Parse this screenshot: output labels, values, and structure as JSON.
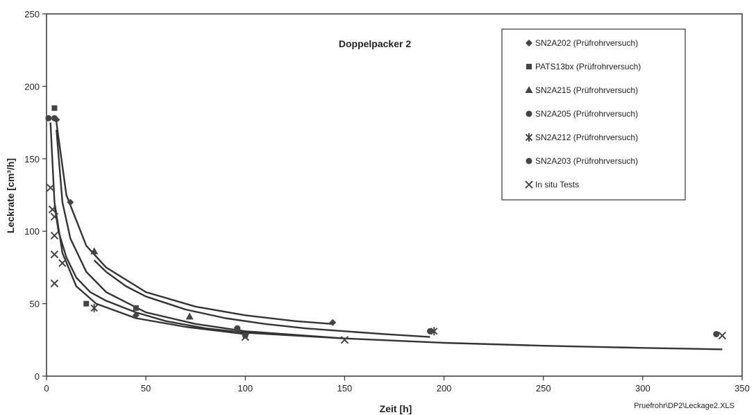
{
  "chart_data": {
    "type": "scatter",
    "title": "Doppelpacker 2",
    "xlabel": "Zeit [h]",
    "ylabel": "Leckrate [cm³/h]",
    "xlim": [
      0,
      350
    ],
    "ylim": [
      0,
      250
    ],
    "xticks": [
      "0",
      "50",
      "100",
      "150",
      "200",
      "250",
      "300",
      "350"
    ],
    "yticks": [
      "0",
      "50",
      "100",
      "150",
      "200",
      "250"
    ],
    "grid": false,
    "legend_position": "top-right",
    "footnote": "Pruefrohr\\DP2\\Leckage2.XLS",
    "series": [
      {
        "name": "SN2A202 (Prüfrohrversuch)",
        "marker": "diamond",
        "points": [
          [
            5,
            177
          ],
          [
            12,
            120
          ],
          [
            45,
            42
          ],
          [
            144,
            37
          ]
        ],
        "trend": [
          [
            5,
            175
          ],
          [
            10,
            125
          ],
          [
            20,
            90
          ],
          [
            30,
            75
          ],
          [
            50,
            58
          ],
          [
            75,
            48
          ],
          [
            100,
            42
          ],
          [
            125,
            38
          ],
          [
            144,
            36
          ]
        ]
      },
      {
        "name": "PATS13bx (Prüfrohrversuch)",
        "marker": "square",
        "points": [
          [
            4,
            185
          ],
          [
            20,
            50
          ],
          [
            45,
            47
          ]
        ],
        "trend": []
      },
      {
        "name": "SN2A215 (Prüfrohrversuch)",
        "marker": "triangle",
        "points": [
          [
            24,
            86
          ],
          [
            72,
            41
          ],
          [
            96,
            32
          ]
        ],
        "trend": [
          [
            24,
            80
          ],
          [
            30,
            72
          ],
          [
            40,
            62
          ],
          [
            50,
            55
          ],
          [
            70,
            46
          ],
          [
            90,
            40
          ],
          [
            110,
            36
          ],
          [
            130,
            33
          ],
          [
            150,
            31
          ],
          [
            170,
            29
          ],
          [
            193,
            27
          ]
        ]
      },
      {
        "name": "SN2A205 (Prüfrohrversuch)",
        "marker": "circle",
        "points": [
          [
            4,
            178
          ],
          [
            96,
            33
          ],
          [
            193,
            31
          ],
          [
            337,
            29
          ]
        ],
        "trend": [
          [
            5,
            170
          ],
          [
            8,
            120
          ],
          [
            12,
            95
          ],
          [
            20,
            72
          ],
          [
            30,
            58
          ],
          [
            50,
            44
          ],
          [
            75,
            36
          ],
          [
            100,
            31
          ],
          [
            150,
            26
          ],
          [
            200,
            23
          ],
          [
            250,
            21
          ],
          [
            300,
            19.5
          ],
          [
            340,
            18.5
          ]
        ]
      },
      {
        "name": "SN2A212 (Prüfrohrversuch)",
        "marker": "star",
        "points": [
          [
            24,
            47
          ],
          [
            195,
            31
          ]
        ],
        "trend": []
      },
      {
        "name": "SN2A203 (Prüfrohrversuch)",
        "marker": "circle",
        "points": [
          [
            1,
            178
          ],
          [
            100,
            28
          ]
        ],
        "trend": [
          [
            2,
            175
          ],
          [
            4,
            120
          ],
          [
            8,
            85
          ],
          [
            15,
            62
          ],
          [
            25,
            50
          ],
          [
            45,
            40
          ],
          [
            70,
            34
          ],
          [
            100,
            29
          ]
        ]
      },
      {
        "name": "In situ Tests",
        "marker": "x",
        "points": [
          [
            2,
            130
          ],
          [
            3,
            115
          ],
          [
            4,
            110
          ],
          [
            4,
            97
          ],
          [
            4,
            84
          ],
          [
            8,
            78
          ],
          [
            4,
            64
          ],
          [
            100,
            27
          ],
          [
            150,
            25
          ],
          [
            340,
            28
          ]
        ],
        "trend": [
          [
            4,
            118
          ],
          [
            6,
            100
          ],
          [
            10,
            82
          ],
          [
            15,
            68
          ],
          [
            22,
            58
          ],
          [
            30,
            52
          ],
          [
            45,
            44
          ],
          [
            60,
            38
          ],
          [
            80,
            33
          ],
          [
            100,
            30
          ],
          [
            125,
            28
          ],
          [
            150,
            26
          ]
        ]
      }
    ]
  }
}
